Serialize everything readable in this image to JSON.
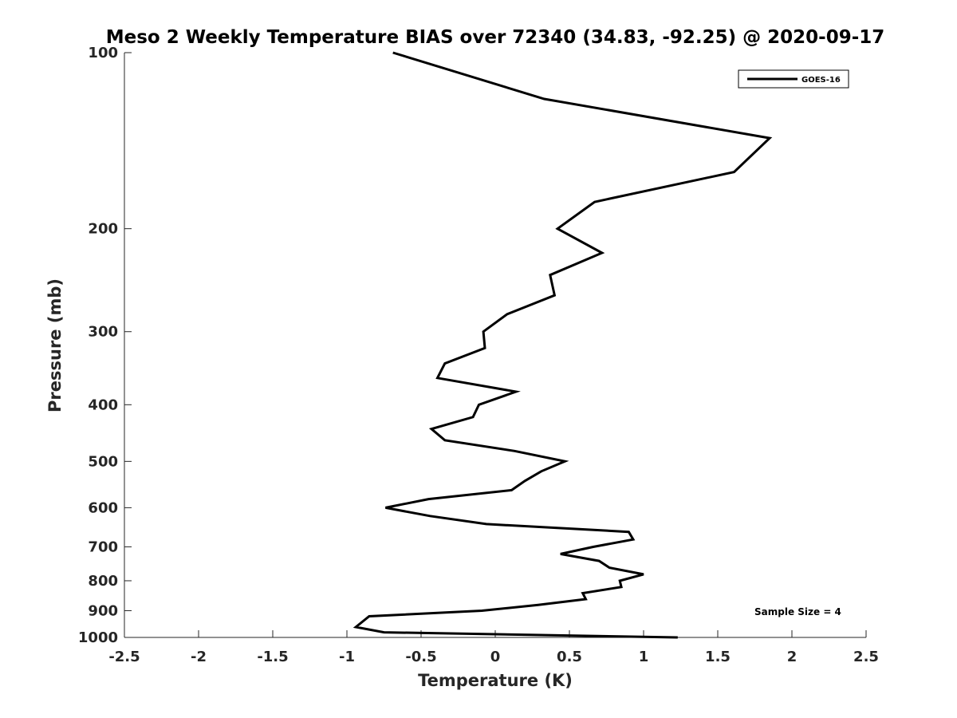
{
  "chart_data": {
    "type": "line",
    "title": "Meso 2 Weekly Temperature BIAS over 72340 (34.83, -92.25) @ 2020-09-17",
    "xlabel": "Temperature (K)",
    "ylabel": "Pressure (mb)",
    "xlim": [
      -2.5,
      2.5
    ],
    "ylim": [
      100,
      1000
    ],
    "y_scale": "log",
    "y_reversed": true,
    "grid": false,
    "x_ticks": [
      -2.5,
      -2,
      -1.5,
      -1,
      -0.5,
      0,
      0.5,
      1,
      1.5,
      2,
      2.5
    ],
    "x_tick_labels": [
      "-2.5",
      "-2",
      "-1.5",
      "-1",
      "-0.5",
      "0",
      "0.5",
      "1",
      "1.5",
      "2",
      "2.5"
    ],
    "y_ticks": [
      100,
      200,
      300,
      400,
      500,
      600,
      700,
      800,
      900,
      1000
    ],
    "y_tick_labels": [
      "100",
      "200",
      "300",
      "400",
      "500",
      "600",
      "700",
      "800",
      "900",
      "1000"
    ],
    "legend_position": "top-right",
    "line_color": "#000000",
    "annotation": "Sample Size = 4",
    "series": [
      {
        "name": "GOES-16",
        "points": [
          {
            "x": -0.69,
            "y": 100
          },
          {
            "x": 0.33,
            "y": 120
          },
          {
            "x": 1.85,
            "y": 140
          },
          {
            "x": 1.61,
            "y": 160
          },
          {
            "x": 0.67,
            "y": 180
          },
          {
            "x": 0.42,
            "y": 200
          },
          {
            "x": 0.72,
            "y": 220
          },
          {
            "x": 0.37,
            "y": 240
          },
          {
            "x": 0.4,
            "y": 260
          },
          {
            "x": 0.08,
            "y": 280
          },
          {
            "x": -0.08,
            "y": 300
          },
          {
            "x": -0.07,
            "y": 320
          },
          {
            "x": -0.34,
            "y": 340
          },
          {
            "x": -0.39,
            "y": 360
          },
          {
            "x": 0.14,
            "y": 380
          },
          {
            "x": -0.11,
            "y": 400
          },
          {
            "x": -0.15,
            "y": 420
          },
          {
            "x": -0.43,
            "y": 440
          },
          {
            "x": -0.34,
            "y": 460
          },
          {
            "x": 0.13,
            "y": 480
          },
          {
            "x": 0.47,
            "y": 500
          },
          {
            "x": 0.31,
            "y": 520
          },
          {
            "x": 0.2,
            "y": 540
          },
          {
            "x": 0.11,
            "y": 560
          },
          {
            "x": -0.45,
            "y": 580
          },
          {
            "x": -0.74,
            "y": 600
          },
          {
            "x": -0.44,
            "y": 620
          },
          {
            "x": -0.06,
            "y": 640
          },
          {
            "x": 0.9,
            "y": 660
          },
          {
            "x": 0.93,
            "y": 680
          },
          {
            "x": 0.66,
            "y": 700
          },
          {
            "x": 0.44,
            "y": 720
          },
          {
            "x": 0.7,
            "y": 740
          },
          {
            "x": 0.77,
            "y": 760
          },
          {
            "x": 1.0,
            "y": 780
          },
          {
            "x": 0.84,
            "y": 800
          },
          {
            "x": 0.85,
            "y": 820
          },
          {
            "x": 0.59,
            "y": 840
          },
          {
            "x": 0.61,
            "y": 860
          },
          {
            "x": 0.29,
            "y": 880
          },
          {
            "x": -0.09,
            "y": 900
          },
          {
            "x": -0.85,
            "y": 920
          },
          {
            "x": -0.94,
            "y": 960
          },
          {
            "x": -0.75,
            "y": 980
          },
          {
            "x": 1.23,
            "y": 1000
          }
        ]
      }
    ]
  }
}
